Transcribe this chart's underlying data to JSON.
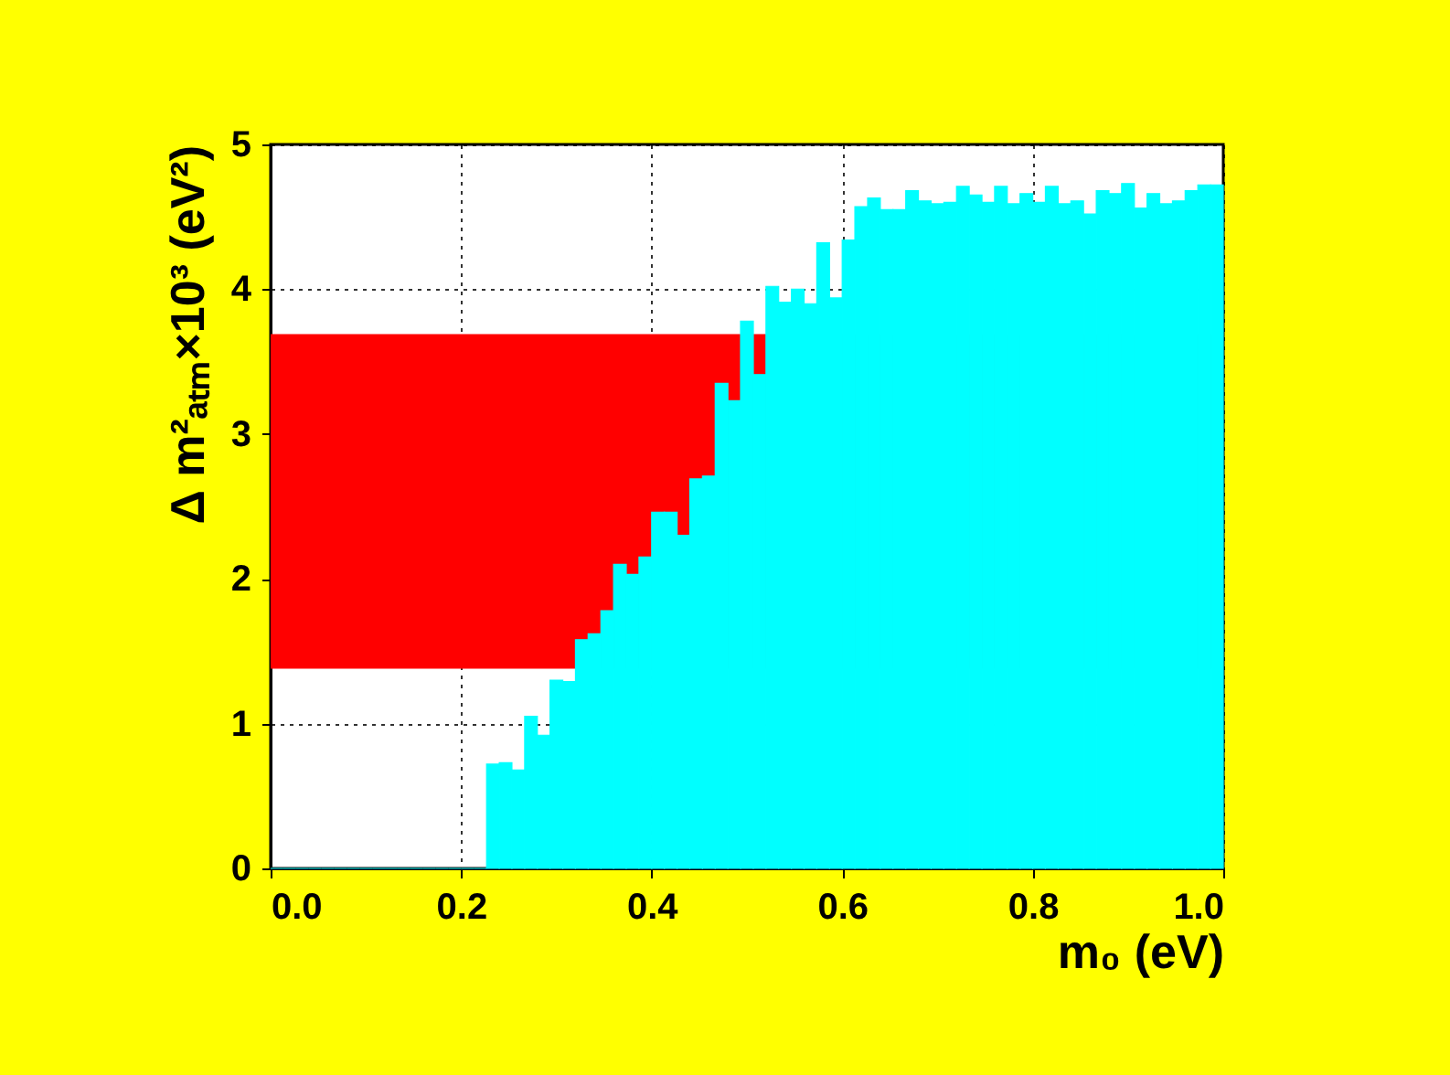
{
  "chart_data": {
    "type": "histogram",
    "xlabel": "m₀ (eV)",
    "ylabel": "Δ m²ₐₜₘ×10³ (eV²)",
    "bins": [
      0,
      0.0133,
      0.0267,
      0.04,
      0.0533,
      0.0667,
      0.08,
      0.0933,
      0.1067,
      0.12,
      0.1333,
      0.1467,
      0.16,
      0.1733,
      0.1867,
      0.2,
      0.2133,
      0.2267,
      0.24,
      0.2533,
      0.2667,
      0.28,
      0.2933,
      0.3067,
      0.32,
      0.3333,
      0.3467,
      0.36,
      0.3733,
      0.3867,
      0.4,
      0.4133,
      0.4267,
      0.44,
      0.4533,
      0.4667,
      0.48,
      0.4933,
      0.5067,
      0.52,
      0.5333,
      0.5467,
      0.56,
      0.5733,
      0.5867,
      0.6,
      0.6133,
      0.6267,
      0.64,
      0.6533,
      0.6667,
      0.68,
      0.6933,
      0.7067,
      0.72,
      0.7333,
      0.7467,
      0.76,
      0.7733,
      0.7867,
      0.8,
      0.8133,
      0.8267,
      0.84,
      0.8533,
      0.8667,
      0.88,
      0.8933,
      0.9067,
      0.92,
      0.9333,
      0.9467,
      0.96,
      0.9733,
      0.9867,
      1.0
    ],
    "series": [
      {
        "color": "#00ffff",
        "values": [
          0,
          0,
          0,
          0,
          0,
          0,
          0,
          0,
          0,
          0,
          0,
          0,
          0,
          0,
          0,
          0,
          0,
          0.72,
          0.73,
          0.68,
          1.05,
          0.92,
          1.3,
          1.29,
          1.58,
          1.62,
          1.78,
          2.1,
          2.03,
          2.15,
          2.46,
          2.46,
          2.3,
          2.69,
          2.71,
          3.35,
          3.23,
          3.78,
          3.41,
          4.02,
          3.91,
          4.0,
          3.9,
          4.32,
          3.94,
          4.34,
          4.57,
          4.63,
          4.55,
          4.55,
          4.68,
          4.61,
          4.59,
          4.6,
          4.71,
          4.65,
          4.6,
          4.71,
          4.59,
          4.66,
          4.6,
          4.71,
          4.59,
          4.61,
          4.52,
          4.68,
          4.66,
          4.73,
          4.56,
          4.66,
          4.59,
          4.61,
          4.68,
          4.72,
          4.72
        ]
      }
    ],
    "xlim": [
      0,
      1
    ],
    "xticks": [
      {
        "value": 0,
        "label": "0.0"
      },
      {
        "value": 0.2,
        "label": "0.2"
      },
      {
        "value": 0.4,
        "label": "0.4"
      },
      {
        "value": 0.6,
        "label": "0.6"
      },
      {
        "value": 0.8,
        "label": "0.8"
      },
      {
        "value": 1,
        "label": "1.0"
      }
    ],
    "ylim": [
      0,
      5
    ],
    "yticks": [
      0,
      1,
      2,
      3,
      4,
      5
    ],
    "bands": [
      {
        "axis": "y",
        "from": 1.38,
        "to": 3.69,
        "color": "#ff0000"
      }
    ],
    "grid": true
  }
}
